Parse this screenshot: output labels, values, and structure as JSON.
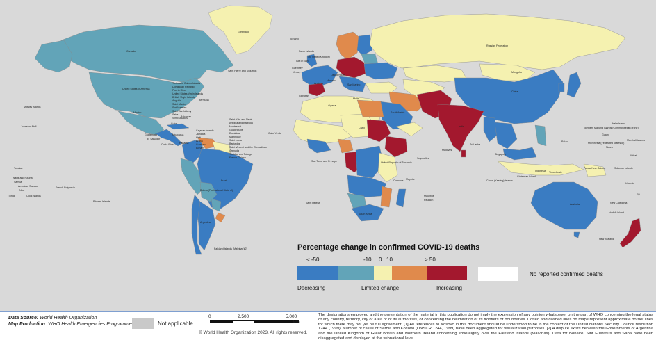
{
  "colors": {
    "ocean": "#d9d9d9",
    "decreasing_strong": "#3a7cc2",
    "decreasing": "#62a4b8",
    "limited": "#f5f1b0",
    "increasing": "#e08a4c",
    "increasing_strong": "#a3182e",
    "no_data": "#ffffff",
    "not_applicable": "#c9c9c9"
  },
  "map_labels": {
    "greenland": "Greenland",
    "iceland": "Iceland",
    "russia": "Russian Federation",
    "canada": "Canada",
    "usa": "United States of America",
    "mexico": "Mexico",
    "brazil": "Brazil",
    "bolivia": "Bolivia (Plurinational State of)",
    "argentina": "Argentina",
    "falklands": "Falkland Islands (Malvinas)[2]",
    "china": "China",
    "mongolia": "Mongolia",
    "india": "India",
    "australia": "Australia",
    "new_zealand": "New Zealand",
    "uk": "The United Kingdom",
    "algeria": "Algeria",
    "chad": "Chad",
    "south_africa": "South Africa",
    "saudi_arabia": "Saudi Arabia",
    "tanzania": "United Republic of Tanzania",
    "maldives": "Maldives",
    "sri_lanka": "Sri Lanka",
    "singapore": "Singapore",
    "indonesia": "Indonesia",
    "png": "Papua New Guinea",
    "nauru": "Nauru",
    "solomon": "Solomon Islands",
    "vanuatu": "Vanuatu",
    "fiji": "Fiji",
    "new_caledonia": "New Caledonia",
    "norfolk": "Norfolk Island",
    "tokelau": "Tokelau",
    "samoa": "Samoa",
    "american_samoa": "American Samoa",
    "niue": "Niue",
    "tonga": "Tonga",
    "cook_islands": "Cook Islands",
    "french_polynesia": "French Polynesia",
    "pitcairn": "Pitcairn Islands",
    "wallis": "Wallis and Futuna",
    "midway": "Midway Islands",
    "johnston": "Johnston Atoll",
    "wake": "Wake Island",
    "northern_mariana": "Northern Mariana Islands (Commonwealth of the)",
    "guam": "Guam",
    "micronesia": "Micronesia (Federated States of)",
    "marshall": "Marshall Islands",
    "kiribati": "Kiribati",
    "palau": "Palau",
    "christmas": "Christmas Island",
    "cocos": "Cocos (Keeling) Islands",
    "timor": "Timor-Leste",
    "seychelles": "Seychelles",
    "mauritius": "Mauritius",
    "reunion": "Réunion",
    "mayotte": "Mayotte",
    "comoros": "Comoros",
    "saint_helena": "Saint Helena",
    "sao_tome": "Sao Tome and Principe",
    "cabo_verde": "Cabo Verde",
    "bermuda": "Bermuda",
    "bahamas": "Bahamas",
    "cuba": "Cuba",
    "saint_pierre": "Saint Pierre and Miquelon",
    "guatemala": "Guatemala",
    "el_salvador": "El Salvador",
    "nicaragua": "Nicaragua",
    "costa_rica": "Costa Rica",
    "panama": "Panama",
    "faroe": "Faroe Islands",
    "guernsey": "Guernsey",
    "jersey": "Jersey",
    "isle_of_man": "Isle of Man",
    "gibraltar": "Gibraltar",
    "malta": "Malta",
    "monaco": "Monaco",
    "san_marino": "San Marino",
    "liechtenstein": "Liechtenstein",
    "andorra": "Andorra",
    "caribbean": [
      "Turks and Caicos Islands",
      "Dominican Republic",
      "Puerto Rico",
      "United States Virgin Islands",
      "British Virgin Islands",
      "Anguilla",
      "Saint Martin",
      "Sint Maarten",
      "Saint Barthélemy",
      "Saba",
      "Sint Eustatius"
    ],
    "caribbean2": [
      "Saint Kitts and Nevis",
      "Antigua and Barbuda",
      "Montserrat",
      "Guadeloupe",
      "Dominica",
      "Martinique",
      "Saint Lucia",
      "Barbados",
      "Saint Vincent and the Grenadines",
      "Grenada",
      "Trinidad and Tobago",
      "French Guiana"
    ],
    "caribbean3": [
      "Cayman Islands",
      "Jamaica",
      "Haiti",
      "Aruba",
      "Curaçao",
      "Bonaire"
    ]
  },
  "legend": {
    "title": "Percentage change in confirmed COVID-19 deaths",
    "ticks": [
      "< -50",
      "-10",
      "0",
      "10",
      "> 50"
    ],
    "categories": [
      "Decreasing",
      "Limited change",
      "Increasing"
    ],
    "no_data": "No reported confirmed deaths"
  },
  "footer": {
    "data_source_label": "Data Source:",
    "data_source": "World Health Organization",
    "production_label": "Map Production:",
    "production": "WHO Health Emergencies Programme",
    "not_applicable": "Not applicable",
    "scale_ticks": [
      "0",
      "2,500",
      "5,000"
    ],
    "scale_unit": "km",
    "copyright": "© World Health Organization 2023, All rights reserved.",
    "disclaimer": "The designations employed and the presentation of the material in this publication do not imply the expression of any opinion whatsoever on the part of WHO concerning the legal status of any country, territory, city or area or of its authorities, or concerning the delimitation of its frontiers or boundaries. Dotted and dashed lines on maps represent approximate border lines for which there may not yet be full agreement. [1] All references to Kosovo in this document should be understood to be in the context of the United Nations Security Council resolution 1244 (1999). Number of cases of Serbia and Kosovo (UNSCR 1244, 1999) have been aggregated for visualization purposes. [2] A dispute exists between the Governments of Argentina and the United Kingdom of Great Britain and Northern Ireland concerning sovereignty over the Falkland Islands (Malvinas). Data for Bonaire, Sint Eustatius and Saba have been disaggregated and displayed at the subnational level."
  }
}
